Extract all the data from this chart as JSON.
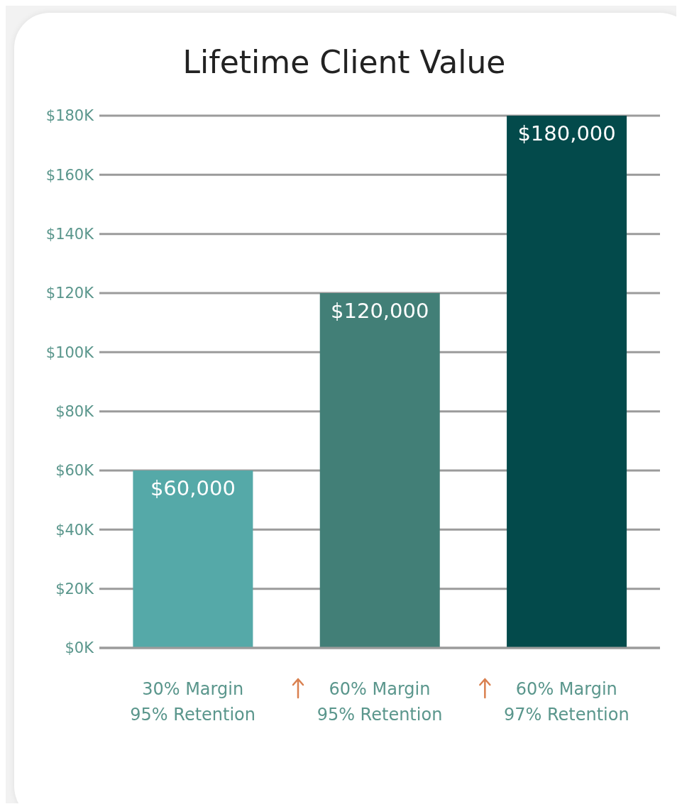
{
  "chart_data": {
    "type": "bar",
    "title": "Lifetime Client Value",
    "categories": [
      "30% Margin\n95% Retention",
      "60% Margin\n95% Retention",
      "60% Margin\n97% Retention"
    ],
    "values": [
      60000,
      120000,
      180000
    ],
    "colors": [
      "#55a9a8",
      "#427f77",
      "#034a4b"
    ],
    "value_labels": [
      "$60,000",
      "$120,000",
      "$180,000"
    ],
    "ylim": [
      0,
      180000
    ],
    "yticks": [
      {
        "value": 0,
        "label": "$0K"
      },
      {
        "value": 20000,
        "label": "$20K"
      },
      {
        "value": 40000,
        "label": "$40K"
      },
      {
        "value": 60000,
        "label": "$60K"
      },
      {
        "value": 80000,
        "label": "$80K"
      },
      {
        "value": 100000,
        "label": "$100K"
      },
      {
        "value": 120000,
        "label": "$120K"
      },
      {
        "value": 140000,
        "label": "$140K"
      },
      {
        "value": 160000,
        "label": "$160K"
      },
      {
        "value": 180000,
        "label": "$180K"
      }
    ],
    "grid": "y",
    "legend": false
  }
}
